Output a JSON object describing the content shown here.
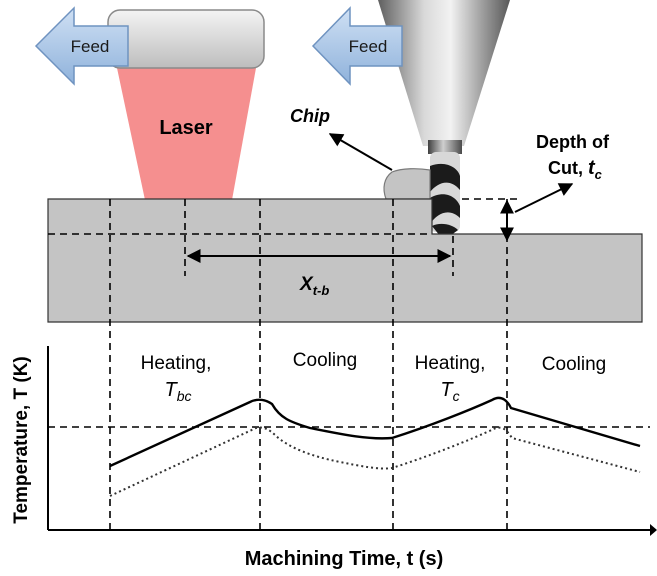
{
  "feed_arrows": [
    {
      "label": "Feed"
    },
    {
      "label": "Feed"
    }
  ],
  "laser": {
    "label": "Laser"
  },
  "chip": {
    "label": "Chip"
  },
  "depth_of_cut": {
    "line1": "Depth of",
    "line2": "Cut, ",
    "symbol": "t",
    "subscript": "c"
  },
  "distance": {
    "symbol": "X",
    "subscript": "t-b"
  },
  "phases": [
    {
      "line1": "Heating,",
      "symbol": "T",
      "subscript": "bc"
    },
    {
      "line1": "Cooling"
    },
    {
      "line1": "Heating,",
      "symbol": "T",
      "subscript": "c"
    },
    {
      "line1": "Cooling"
    }
  ],
  "axes": {
    "ylabel": "Temperature, T (K)",
    "xlabel": "Machining Time, t (s)"
  },
  "colors": {
    "feed_arrow": "#a9c8ea",
    "laser_beam": "#f58f8f",
    "workpiece": "#c4c4c4",
    "tool_body": "#9a9a9a",
    "flute": "#1b1b1b"
  }
}
